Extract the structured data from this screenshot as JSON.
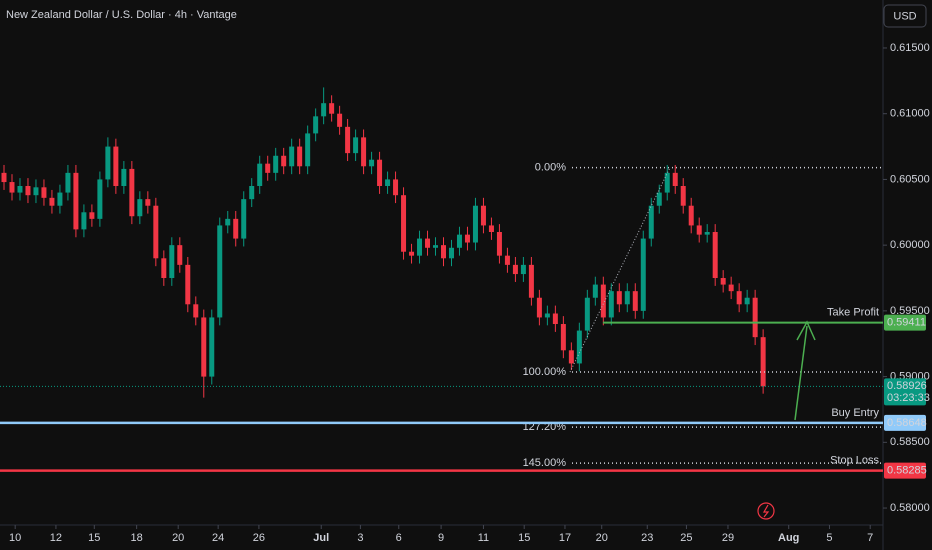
{
  "chart_data": {
    "type": "candlestick",
    "title": "New Zealand Dollar / U.S. Dollar · 4h · Vantage",
    "currency": "USD",
    "up_color": "#089981",
    "down_color": "#f23645",
    "open": [
      0.6055,
      0.6048,
      0.604,
      0.6045,
      0.6038,
      0.6044,
      0.6036,
      0.603,
      0.604,
      0.6055,
      0.6012,
      0.6025,
      0.602,
      0.605,
      0.6075,
      0.6045,
      0.6058,
      0.6022,
      0.6035,
      0.603,
      0.599,
      0.5975,
      0.6,
      0.5985,
      0.5955,
      0.5945,
      0.59,
      0.5945,
      0.6015,
      0.602,
      0.6005,
      0.6035,
      0.6045,
      0.6062,
      0.6055,
      0.6068,
      0.606,
      0.6075,
      0.606,
      0.6085,
      0.6098,
      0.6108,
      0.61,
      0.609,
      0.607,
      0.6082,
      0.606,
      0.6065,
      0.6045,
      0.605,
      0.6038,
      0.5995,
      0.5992,
      0.6005,
      0.5998,
      0.6,
      0.599,
      0.5998,
      0.6008,
      0.6002,
      0.603,
      0.6015,
      0.601,
      0.5992,
      0.5985,
      0.5978,
      0.5985,
      0.596,
      0.5945,
      0.5948,
      0.594,
      0.592,
      0.591,
      0.5935,
      0.596,
      0.597,
      0.5945,
      0.5965,
      0.5955,
      0.5965,
      0.595,
      0.6005,
      0.603,
      0.604,
      0.6055,
      0.6045,
      0.603,
      0.6015,
      0.6008,
      0.601,
      0.5975,
      0.597,
      0.5965,
      0.5955,
      0.596,
      0.593
    ],
    "high": [
      0.6061,
      0.6054,
      0.6051,
      0.6051,
      0.605,
      0.605,
      0.6042,
      0.6046,
      0.6061,
      0.6061,
      0.6031,
      0.6031,
      0.6056,
      0.6082,
      0.6081,
      0.6064,
      0.6064,
      0.6041,
      0.6041,
      0.6036,
      0.5996,
      0.6006,
      0.6006,
      0.5991,
      0.5961,
      0.5951,
      0.5951,
      0.6021,
      0.6026,
      0.6026,
      0.6041,
      0.6051,
      0.6068,
      0.6068,
      0.6074,
      0.6074,
      0.6081,
      0.6081,
      0.6091,
      0.6104,
      0.612,
      0.6114,
      0.6106,
      0.6096,
      0.6088,
      0.6088,
      0.6071,
      0.6071,
      0.6056,
      0.6056,
      0.6044,
      0.6001,
      0.6011,
      0.6011,
      0.6006,
      0.6006,
      0.6004,
      0.6014,
      0.6014,
      0.6036,
      0.6036,
      0.6021,
      0.6016,
      0.5998,
      0.5991,
      0.5991,
      0.5991,
      0.5966,
      0.5954,
      0.5954,
      0.5946,
      0.5926,
      0.5941,
      0.5966,
      0.5976,
      0.5976,
      0.5971,
      0.5971,
      0.5971,
      0.5971,
      0.6011,
      0.6036,
      0.6046,
      0.6061,
      0.6061,
      0.6051,
      0.6036,
      0.6021,
      0.6016,
      0.6016,
      0.5981,
      0.5976,
      0.5971,
      0.5966,
      0.5966,
      0.5936
    ],
    "low": [
      0.6042,
      0.6034,
      0.6034,
      0.6032,
      0.6032,
      0.603,
      0.6024,
      0.6024,
      0.6034,
      0.6006,
      0.6006,
      0.6014,
      0.6014,
      0.6044,
      0.6039,
      0.6039,
      0.6016,
      0.6016,
      0.6024,
      0.5984,
      0.5969,
      0.5969,
      0.5979,
      0.5949,
      0.5939,
      0.5884,
      0.5894,
      0.5939,
      0.6009,
      0.5999,
      0.5999,
      0.6029,
      0.6039,
      0.6049,
      0.6049,
      0.6054,
      0.6054,
      0.6054,
      0.6054,
      0.6079,
      0.6092,
      0.6094,
      0.6084,
      0.6064,
      0.6064,
      0.6054,
      0.6054,
      0.6039,
      0.6039,
      0.6032,
      0.5989,
      0.5986,
      0.5986,
      0.5992,
      0.5992,
      0.5984,
      0.5984,
      0.5992,
      0.5996,
      0.5996,
      0.6009,
      0.6004,
      0.5986,
      0.5979,
      0.5972,
      0.5972,
      0.5954,
      0.5939,
      0.5939,
      0.5934,
      0.5914,
      0.5905,
      0.5904,
      0.5929,
      0.5954,
      0.5939,
      0.5939,
      0.5949,
      0.5949,
      0.5944,
      0.5944,
      0.5999,
      0.6024,
      0.6034,
      0.6039,
      0.6024,
      0.6009,
      0.6002,
      0.6002,
      0.5969,
      0.5964,
      0.5959,
      0.5949,
      0.5949,
      0.5924,
      0.5887
    ],
    "close": [
      0.6048,
      0.604,
      0.6045,
      0.6038,
      0.6044,
      0.6036,
      0.603,
      0.604,
      0.6055,
      0.6012,
      0.6025,
      0.602,
      0.605,
      0.6075,
      0.6045,
      0.6058,
      0.6022,
      0.6035,
      0.603,
      0.599,
      0.5975,
      0.6,
      0.5985,
      0.5955,
      0.5945,
      0.59,
      0.5945,
      0.6015,
      0.602,
      0.6005,
      0.6035,
      0.6045,
      0.6062,
      0.6055,
      0.6068,
      0.606,
      0.6075,
      0.606,
      0.6085,
      0.6098,
      0.6108,
      0.61,
      0.609,
      0.607,
      0.6082,
      0.606,
      0.6065,
      0.6045,
      0.605,
      0.6038,
      0.5995,
      0.5992,
      0.6005,
      0.5998,
      0.6,
      0.599,
      0.5998,
      0.6008,
      0.6002,
      0.603,
      0.6015,
      0.601,
      0.5992,
      0.5985,
      0.5978,
      0.5985,
      0.596,
      0.5945,
      0.5948,
      0.594,
      0.592,
      0.591,
      0.5935,
      0.596,
      0.597,
      0.5945,
      0.5965,
      0.5955,
      0.5965,
      0.595,
      0.6005,
      0.603,
      0.604,
      0.6055,
      0.6045,
      0.603,
      0.6015,
      0.6008,
      0.601,
      0.5975,
      0.597,
      0.5965,
      0.5955,
      0.596,
      0.593,
      0.58926
    ],
    "xlim": [
      -0.5,
      110
    ],
    "xticks": [
      {
        "value": 1.4,
        "label": "10"
      },
      {
        "value": 6.5,
        "label": "12"
      },
      {
        "value": 11.3,
        "label": "15"
      },
      {
        "value": 16.6,
        "label": "18"
      },
      {
        "value": 21.8,
        "label": "20"
      },
      {
        "value": 26.8,
        "label": "24"
      },
      {
        "value": 31.9,
        "label": "26"
      },
      {
        "value": 39.7,
        "label": "Jul"
      },
      {
        "value": 44.6,
        "label": "3"
      },
      {
        "value": 49.4,
        "label": "6"
      },
      {
        "value": 54.7,
        "label": "9"
      },
      {
        "value": 60,
        "label": "11"
      },
      {
        "value": 65.1,
        "label": "15"
      },
      {
        "value": 70.2,
        "label": "17"
      },
      {
        "value": 74.8,
        "label": "20"
      },
      {
        "value": 80.5,
        "label": "23"
      },
      {
        "value": 85.4,
        "label": "25"
      },
      {
        "value": 90.6,
        "label": "29"
      },
      {
        "value": 98.2,
        "label": "Aug"
      },
      {
        "value": 103.3,
        "label": "5"
      },
      {
        "value": 108.4,
        "label": "7"
      }
    ],
    "ylim": [
      0.57871,
      0.61865
    ],
    "yticks": [
      {
        "value": 0.615,
        "label": "0.61500"
      },
      {
        "value": 0.61,
        "label": "0.61000"
      },
      {
        "value": 0.605,
        "label": "0.60500"
      },
      {
        "value": 0.6,
        "label": "0.60000"
      },
      {
        "value": 0.595,
        "label": "0.59500"
      },
      {
        "value": 0.59,
        "label": "0.59000"
      },
      {
        "value": 0.585,
        "label": "0.58500"
      },
      {
        "value": 0.58,
        "label": "0.58000"
      }
    ],
    "fib_levels": [
      {
        "name": "0.00%",
        "value": 0.6059
      },
      {
        "name": "100.00%",
        "value": 0.59035
      },
      {
        "name": "127.20%",
        "value": 0.58616
      },
      {
        "name": "145.00%",
        "value": 0.58342
      }
    ],
    "levels": [
      {
        "name": "Take Profit",
        "value": 0.59411,
        "color": "#4caf50"
      },
      {
        "name": "Buy Entry",
        "value": 0.58648,
        "color": "#90caf9"
      },
      {
        "name": "Stop Loss",
        "value": 0.58285,
        "color": "#f23645"
      }
    ],
    "last": {
      "value": 0.58926,
      "countdown": "03:23:33",
      "color": "#089981"
    }
  }
}
